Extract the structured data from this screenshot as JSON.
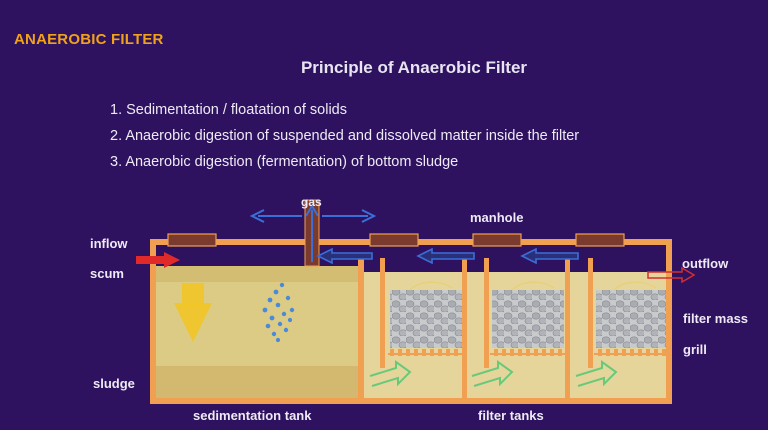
{
  "header": {
    "title": "ANAEROBIC FILTER"
  },
  "slide": {
    "title": "Principle of Anaerobic Filter",
    "points": [
      "1. Sedimentation / floatation of solids",
      "2. Anaerobic digestion of suspended and dissolved matter inside the filter",
      "3. Anaerobic digestion (fermentation) of bottom sludge"
    ]
  },
  "diagram": {
    "labels": {
      "gas": "gas",
      "manhole": "manhole",
      "inflow": "inflow",
      "scum": "scum",
      "outflow": "outflow",
      "filter_mass": "filter mass",
      "grill": "grill",
      "sludge": "sludge",
      "sedimentation_tank": "sedimentation tank",
      "filter_tanks": "filter tanks"
    },
    "colors": {
      "wall": "#f0a050",
      "liquid": "#e0cb85",
      "sludge": "#d9c078",
      "filter_media": "#b9bcc2",
      "gas_arrow": "#3a6fd8",
      "inflow_arrow": "#e02a2a",
      "flow_arrow": "#69c97a",
      "settling_arrow": "#f2c521"
    }
  }
}
